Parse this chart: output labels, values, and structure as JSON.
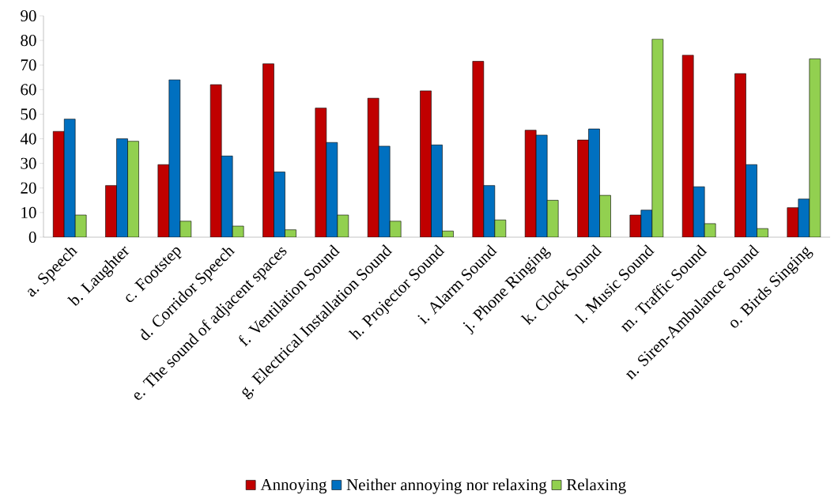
{
  "chart_data": {
    "type": "bar",
    "categories": [
      "a. Speech",
      "b. Laughter",
      "c. Footstep",
      "d. Corridor Speech",
      "e. The sound of adjacent spaces",
      "f. Ventilation Sound",
      "g. Electrical Installation Sound",
      "h. Projector Sound",
      "i. Alarm Sound",
      "j. Phone Ringing",
      "k. Clock Sound",
      "l. Music Sound",
      "m. Traffic Sound",
      "n. Siren-Ambulance Sound",
      "o. Birds Singing"
    ],
    "series": [
      {
        "name": "Annoying",
        "color": "#c00000",
        "values": [
          43,
          21,
          29.5,
          62,
          70.5,
          52.5,
          56.5,
          59.5,
          71.5,
          43.5,
          39.5,
          9,
          74,
          66.5,
          12
        ]
      },
      {
        "name": "Neither annoying nor relaxing",
        "color": "#0070c0",
        "values": [
          48,
          40,
          64,
          33,
          26.5,
          38.5,
          37,
          37.5,
          21,
          41.5,
          44,
          11,
          20.5,
          29.5,
          15.5
        ]
      },
      {
        "name": "Relaxing",
        "color": "#92d050",
        "values": [
          9,
          39,
          6.5,
          4.5,
          3,
          9,
          6.5,
          2.5,
          7,
          15,
          17,
          80.5,
          5.5,
          3.5,
          72.5
        ]
      }
    ],
    "ylim": [
      0,
      90
    ],
    "yticks": [
      0,
      10,
      20,
      30,
      40,
      50,
      60,
      70,
      80,
      90
    ],
    "legend": "bottom"
  }
}
